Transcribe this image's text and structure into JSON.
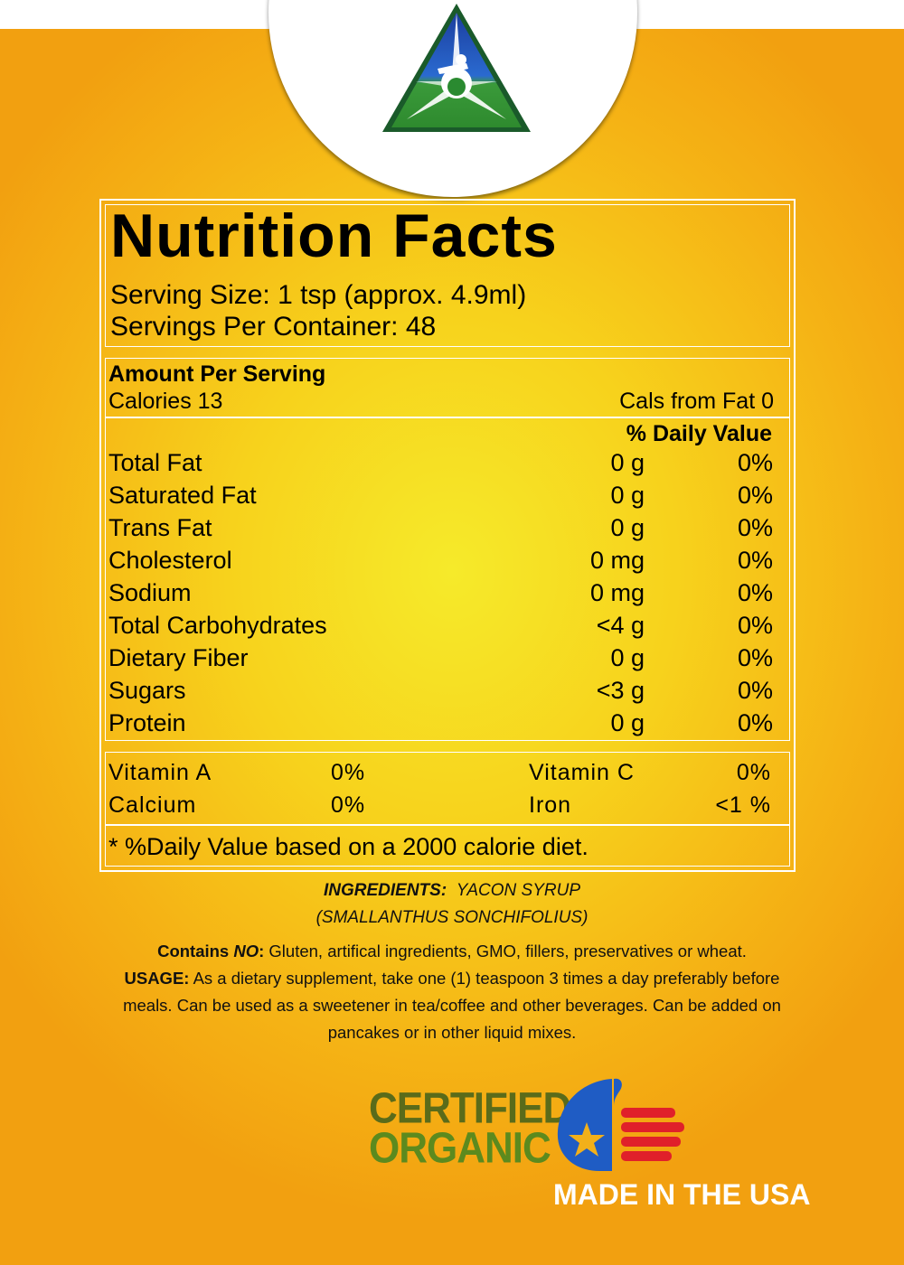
{
  "label": {
    "title": "Nutrition Facts",
    "serving_size": "Serving Size: 1 tsp (approx. 4.9ml)",
    "servings_per_container": "Servings Per Container: 48",
    "amount_per_serving": "Amount Per Serving",
    "calories": "Calories 13",
    "calories_from_fat": "Cals from Fat 0",
    "daily_value_header": "% Daily Value",
    "nutrients": [
      {
        "name": "Total Fat",
        "amount": "0 g",
        "dv": "0%"
      },
      {
        "name": "Saturated Fat",
        "amount": "0 g",
        "dv": "0%"
      },
      {
        "name": "Trans Fat",
        "amount": "0 g",
        "dv": "0%"
      },
      {
        "name": "Cholesterol",
        "amount": "0 mg",
        "dv": "0%"
      },
      {
        "name": "Sodium",
        "amount": "0 mg",
        "dv": "0%"
      },
      {
        "name": "Total Carbohydrates",
        "amount": "<4 g",
        "dv": "0%"
      },
      {
        "name": "Dietary Fiber",
        "amount": "0 g",
        "dv": "0%"
      },
      {
        "name": "Sugars",
        "amount": "<3 g",
        "dv": "0%"
      },
      {
        "name": "Protein",
        "amount": "0 g",
        "dv": "0%"
      }
    ],
    "vitamins": [
      {
        "name": "Vitamin A",
        "dv": "0%"
      },
      {
        "name": "Vitamin C",
        "dv": "0%"
      },
      {
        "name": "Calcium",
        "dv": "0%"
      },
      {
        "name": "Iron",
        "dv": "<1 %"
      }
    ],
    "footnote": "* %Daily Value based on a 2000 calorie diet."
  },
  "ingredients": {
    "heading": "INGREDIENTS:",
    "line1": "YACON SYRUP",
    "line2": "(SMALLANTHUS SONCHIFOLIUS)"
  },
  "contains": {
    "label_prefix": "Contains ",
    "label_no": "NO",
    "label_colon": ":",
    "text": " Gluten, artifical ingredients, GMO, fillers, preservatives or wheat."
  },
  "usage": {
    "label": "USAGE:",
    "text": " As a dietary supplement, take one (1) teaspoon 3 times a day preferably before meals. Can be used as a sweetener in tea/coffee and other beverages. Can be added on pancakes or in other liquid mixes."
  },
  "badges": {
    "certified_line1": "CERTIFIED",
    "certified_line2": "ORGANIC",
    "made_in": "MADE IN THE USA"
  },
  "colors": {
    "background_center": "#f6ea2a",
    "background_edge": "#f2a010",
    "organic_green": "#5c8a1e",
    "usa_blue": "#1f5cc4",
    "usa_red": "#e0202a",
    "usa_star": "#f2b01a"
  },
  "icons": {
    "brand_logo": "triangle-person-logo",
    "usa_badge": "flag-hand-star-icon"
  }
}
